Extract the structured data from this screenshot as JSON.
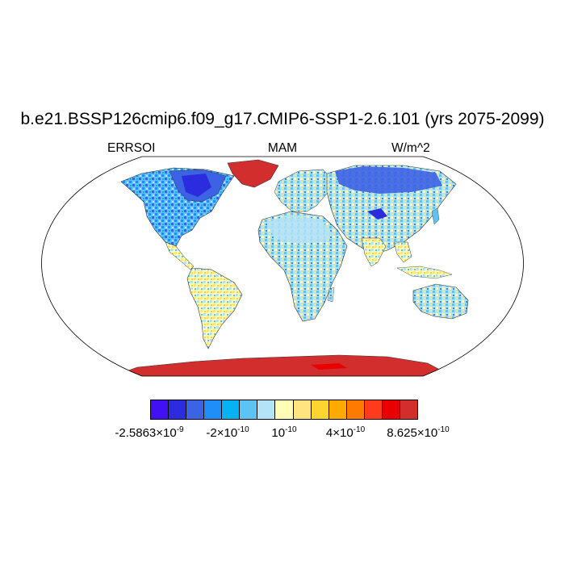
{
  "title": "b.e21.BSSP126cmip6.f09_g17.CMIP6-SSP1-2.6.101 (yrs 2075-2099)",
  "variable": "ERRSOI",
  "season": "MAM",
  "units": "W/m^2",
  "colorbar": {
    "colors": [
      "#4110f5",
      "#2b2cde",
      "#3d63e5",
      "#1f8ef8",
      "#07b2f2",
      "#5dc3f5",
      "#b4e2f6",
      "#fffdb6",
      "#ffe47f",
      "#fed430",
      "#ffaa00",
      "#ff7a00",
      "#fe3b1d",
      "#e90000",
      "#d22e2e"
    ],
    "tick_labels": [
      {
        "mantissa": "-2.5863",
        "exponent": "-9"
      },
      {
        "mantissa": "-2",
        "exponent": "-10"
      },
      {
        "mantissa": "10",
        "exponent": "-10"
      },
      {
        "mantissa": "4",
        "exponent": "-10"
      },
      {
        "mantissa": "8.625",
        "exponent": "-10"
      }
    ]
  }
}
